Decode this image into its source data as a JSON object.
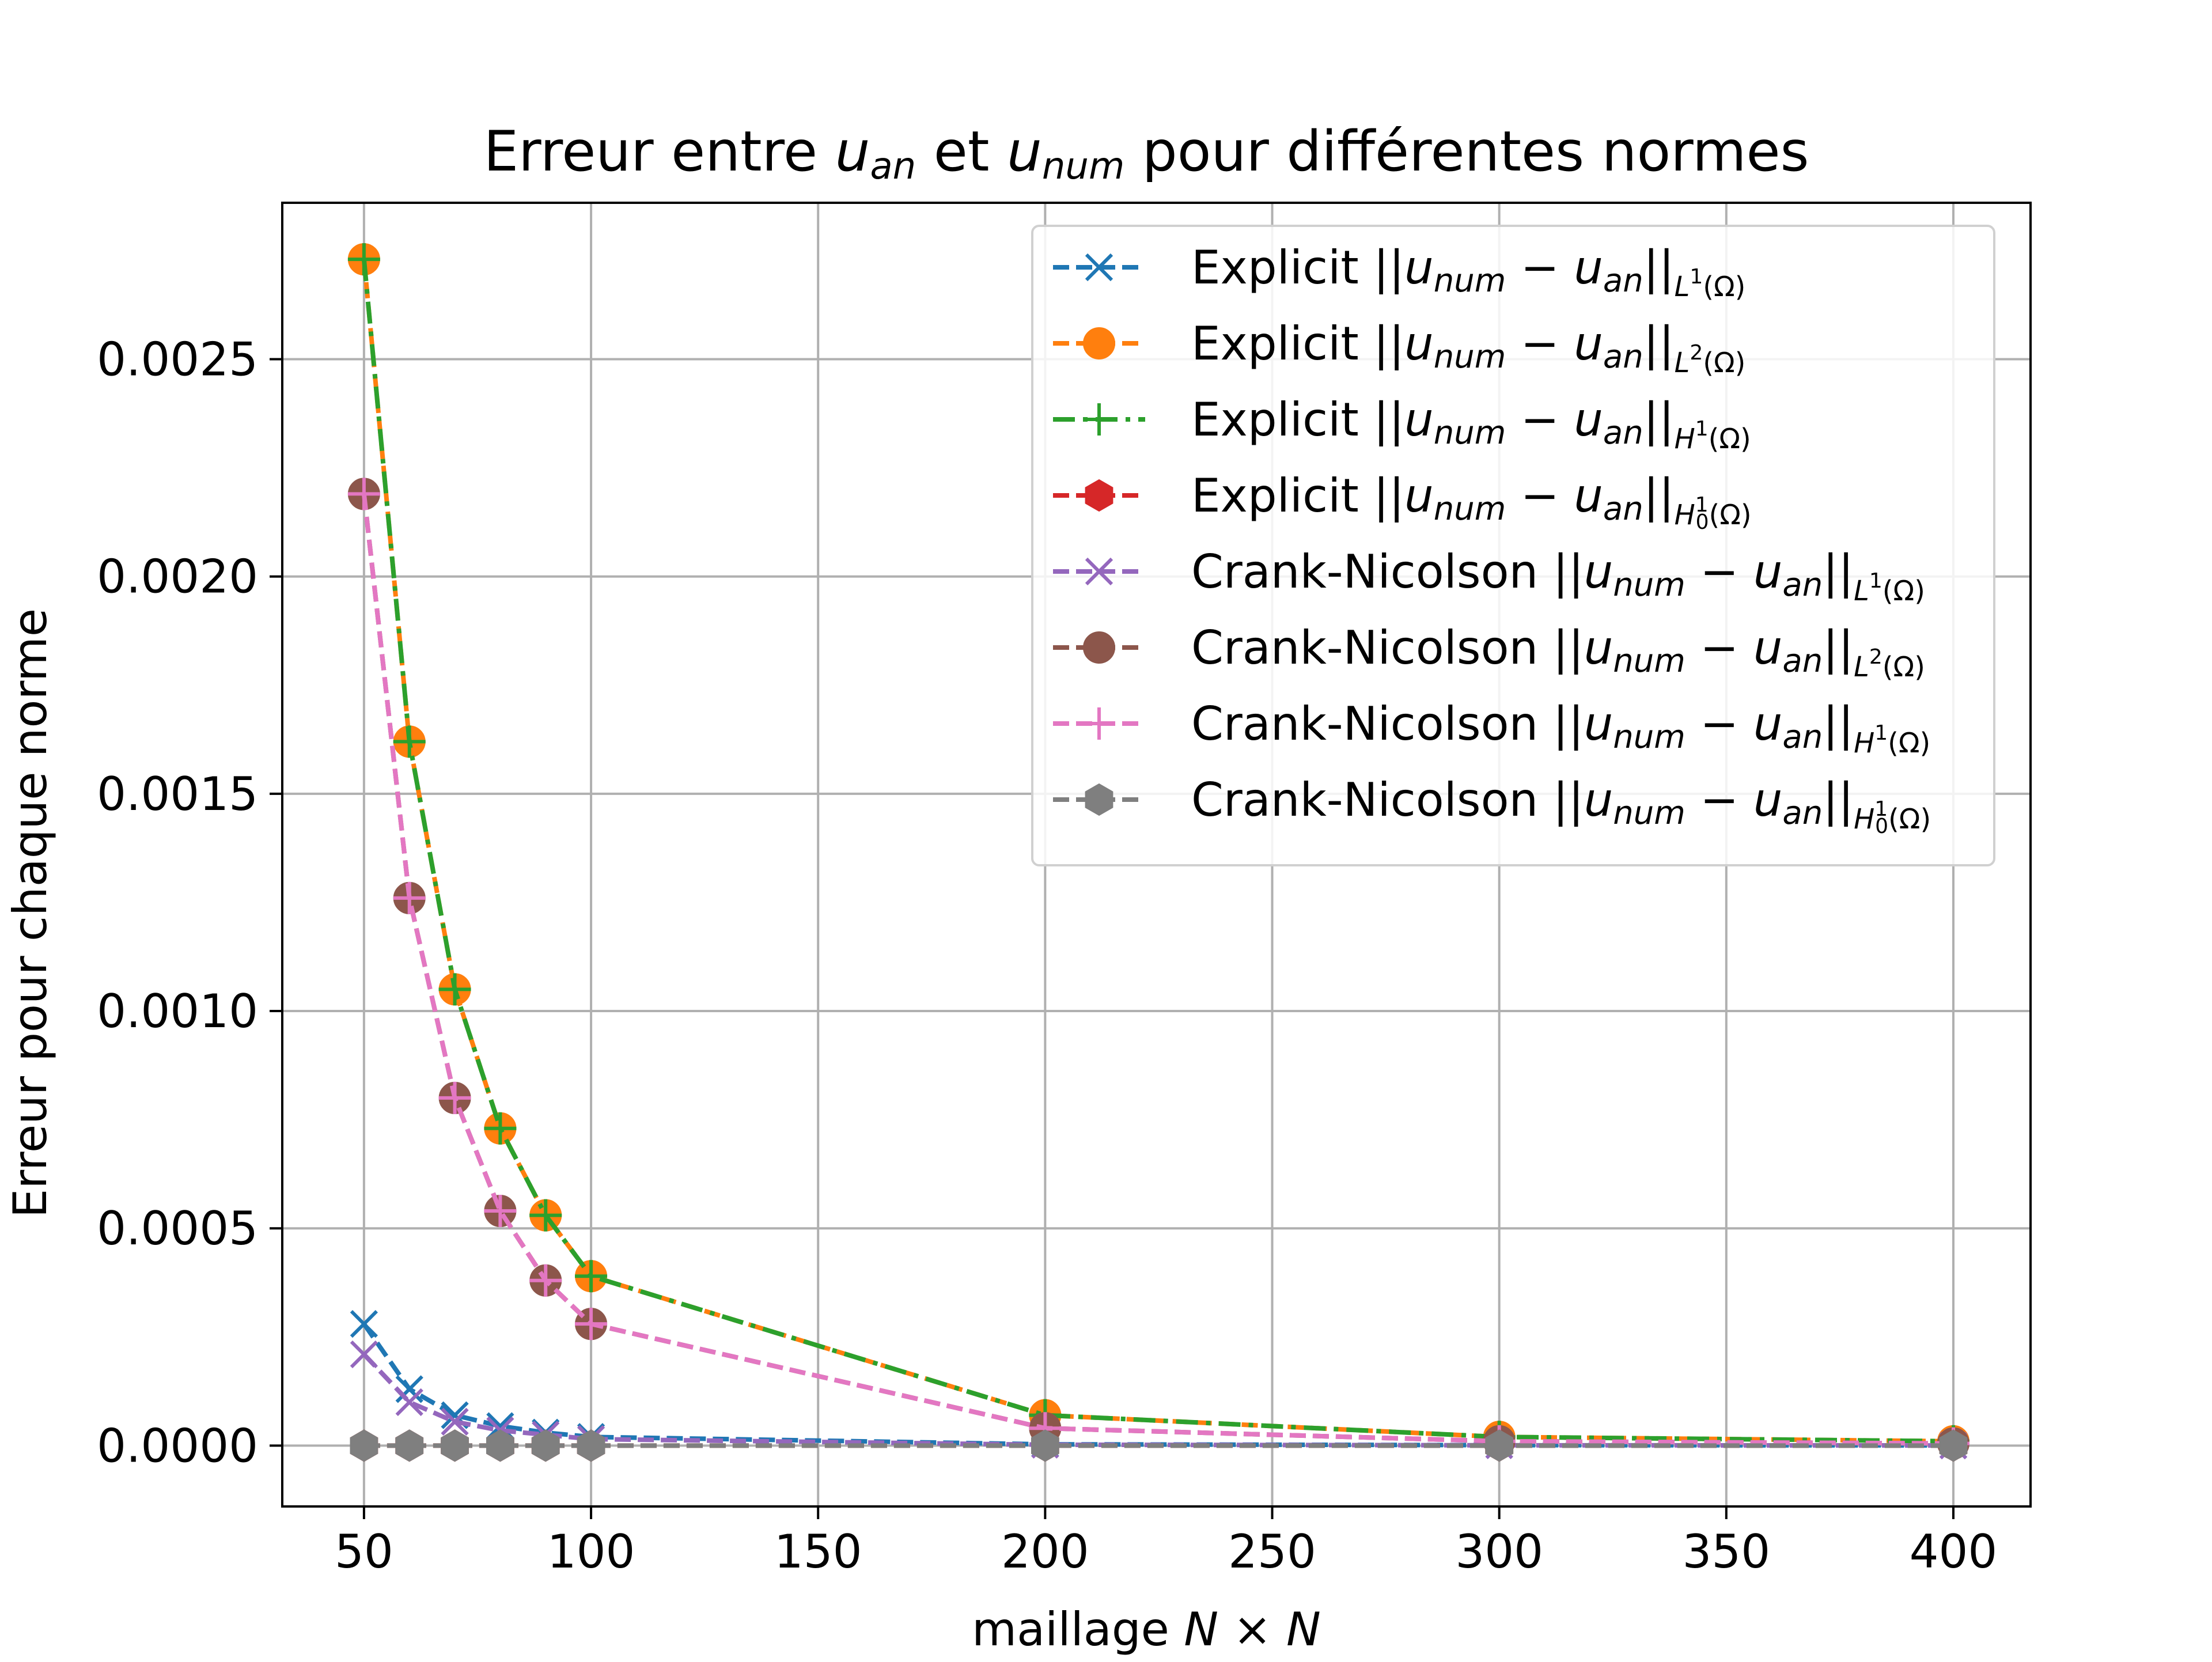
{
  "chart_data": {
    "type": "line",
    "title": {
      "prefix": "Erreur entre ",
      "v1": "u",
      "v1sub": "an",
      "mid": " et ",
      "v2": "u",
      "v2sub": "num",
      "suffix": " pour différentes normes"
    },
    "xlabel": {
      "text": "maillage ",
      "math": "N × N"
    },
    "ylabel": "Erreur pour chaque norme",
    "xlim": [
      32,
      417
    ],
    "ylim": [
      -0.00014,
      0.00286
    ],
    "x_ticks": [
      50,
      100,
      150,
      200,
      250,
      300,
      350,
      400
    ],
    "x_tick_labels": [
      "50",
      "100",
      "150",
      "200",
      "250",
      "300",
      "350",
      "400"
    ],
    "y_ticks": [
      0.0,
      0.0005,
      0.001,
      0.0015,
      0.002,
      0.0025
    ],
    "y_tick_labels": [
      "0.0000",
      "0.0005",
      "0.0010",
      "0.0015",
      "0.0020",
      "0.0025"
    ],
    "grid": true,
    "legend_position": "top-right",
    "x": [
      50,
      60,
      70,
      80,
      90,
      100,
      200,
      300,
      400
    ],
    "series": [
      {
        "name": {
          "scheme": "Explicit",
          "space": "L",
          "sup": "1",
          "sub0": false
        },
        "color": "#1f77b4",
        "marker": "x",
        "linestyle": "dash",
        "values": [
          0.00028,
          0.00013,
          7e-05,
          4.5e-05,
          3e-05,
          2e-05,
          3e-06,
          1e-06,
          5e-07
        ]
      },
      {
        "name": {
          "scheme": "Explicit",
          "space": "L",
          "sup": "2",
          "sub0": false
        },
        "color": "#ff7f0e",
        "marker": "circle",
        "linestyle": "dash",
        "values": [
          0.00273,
          0.00162,
          0.00105,
          0.00073,
          0.00053,
          0.00039,
          7e-05,
          2e-05,
          1e-05
        ]
      },
      {
        "name": {
          "scheme": "Explicit",
          "space": "H",
          "sup": "1",
          "sub0": false
        },
        "color": "#2ca02c",
        "marker": "plus",
        "linestyle": "dashdot",
        "values": [
          0.00273,
          0.00162,
          0.00105,
          0.00073,
          0.00053,
          0.00039,
          7e-05,
          2e-05,
          1e-05
        ]
      },
      {
        "name": {
          "scheme": "Explicit",
          "space": "H",
          "sup": "1",
          "sub0": true
        },
        "color": "#d62728",
        "marker": "hexagon",
        "linestyle": "dash",
        "values": [
          0.0,
          0.0,
          0.0,
          0.0,
          0.0,
          0.0,
          0.0,
          0.0,
          0.0
        ]
      },
      {
        "name": {
          "scheme": "Crank-Nicolson",
          "space": "L",
          "sup": "1",
          "sub0": false
        },
        "color": "#9467bd",
        "marker": "x",
        "linestyle": "dash",
        "values": [
          0.00021,
          0.0001,
          5.5e-05,
          3.5e-05,
          2.5e-05,
          1.5e-05,
          2e-06,
          8e-07,
          4e-07
        ]
      },
      {
        "name": {
          "scheme": "Crank-Nicolson",
          "space": "L",
          "sup": "2",
          "sub0": false
        },
        "color": "#8c564b",
        "marker": "circle",
        "linestyle": "dash",
        "values": [
          0.00219,
          0.00126,
          0.0008,
          0.00054,
          0.00038,
          0.00028,
          4e-05,
          1e-05,
          5e-06
        ]
      },
      {
        "name": {
          "scheme": "Crank-Nicolson",
          "space": "H",
          "sup": "1",
          "sub0": false
        },
        "color": "#e377c2",
        "marker": "plus",
        "linestyle": "dash",
        "values": [
          0.00219,
          0.00126,
          0.0008,
          0.00054,
          0.00038,
          0.00028,
          4e-05,
          1e-05,
          5e-06
        ]
      },
      {
        "name": {
          "scheme": "Crank-Nicolson",
          "space": "H",
          "sup": "1",
          "sub0": true
        },
        "color": "#7f7f7f",
        "marker": "hexagon",
        "linestyle": "dash",
        "values": [
          0.0,
          0.0,
          0.0,
          0.0,
          0.0,
          0.0,
          0.0,
          0.0,
          0.0
        ]
      }
    ]
  }
}
